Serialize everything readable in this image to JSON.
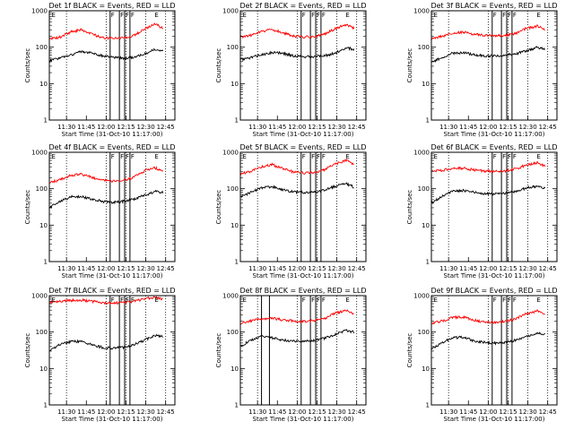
{
  "page": {
    "panel_xlabel": "Start Time (31-Oct-10 11:17:00)",
    "panel_ylabel": "Counts/sec"
  },
  "chart_data": [
    {
      "type": "line",
      "title": "Det 1f BLACK = Events, RED = LLD",
      "xlabel": "Start Time (31-Oct-10 11:17:00)",
      "ylabel": "Counts/sec",
      "yscale": "log",
      "ylim": [
        1,
        1000
      ],
      "x_ticks": [
        "11:30",
        "11:45",
        "12:00",
        "12:15",
        "12:30",
        "12:45"
      ],
      "series": [
        {
          "color": "#000000",
          "x": [
            "11:17",
            "11:25",
            "11:33",
            "11:41",
            "11:49",
            "11:57",
            "12:05",
            "12:13",
            "12:21",
            "12:29",
            "12:37",
            "12:43"
          ],
          "y": [
            42,
            50,
            60,
            75,
            70,
            58,
            52,
            50,
            54,
            65,
            88,
            82
          ]
        },
        {
          "color": "#ff0000",
          "x": [
            "11:17",
            "11:25",
            "11:33",
            "11:41",
            "11:49",
            "11:57",
            "12:05",
            "12:13",
            "12:21",
            "12:29",
            "12:37",
            "12:43"
          ],
          "y": [
            165,
            190,
            260,
            300,
            230,
            185,
            175,
            180,
            210,
            320,
            430,
            330
          ]
        }
      ],
      "markers": {
        "dotted": [
          "11:30",
          "12:00",
          "12:15",
          "12:30",
          "12:45"
        ],
        "solid": [
          "12:03",
          "12:10",
          "12:14",
          "12:18"
        ]
      },
      "marks": [
        "F",
        "F",
        "F",
        "F",
        "E",
        "E"
      ]
    },
    {
      "type": "line",
      "title": "Det 2f BLACK = Events, RED = LLD",
      "xlabel": "Start Time (31-Oct-10 11:17:00)",
      "ylabel": "Counts/sec",
      "yscale": "log",
      "ylim": [
        1,
        1000
      ],
      "x_ticks": [
        "11:30",
        "11:45",
        "12:00",
        "12:15",
        "12:30",
        "12:45"
      ],
      "series": [
        {
          "color": "#000000",
          "x": [
            "11:17",
            "11:25",
            "11:33",
            "11:41",
            "11:49",
            "11:57",
            "12:05",
            "12:13",
            "12:21",
            "12:29",
            "12:37",
            "12:43"
          ],
          "y": [
            45,
            52,
            62,
            72,
            68,
            58,
            55,
            55,
            58,
            70,
            95,
            88
          ]
        },
        {
          "color": "#ff0000",
          "x": [
            "11:17",
            "11:25",
            "11:33",
            "11:41",
            "11:49",
            "11:57",
            "12:05",
            "12:13",
            "12:21",
            "12:29",
            "12:37",
            "12:43"
          ],
          "y": [
            190,
            210,
            270,
            310,
            250,
            200,
            190,
            195,
            230,
            330,
            420,
            330
          ]
        }
      ],
      "markers": {
        "dotted": [
          "11:30",
          "12:00",
          "12:15",
          "12:30",
          "12:45"
        ],
        "solid": [
          "12:03",
          "12:10",
          "12:14",
          "12:18"
        ]
      },
      "marks": [
        "F",
        "F",
        "F",
        "F",
        "E",
        "E"
      ]
    },
    {
      "type": "line",
      "title": "Det 3f BLACK = Events, RED = LLD",
      "xlabel": "Start Time (31-Oct-10 11:17:00)",
      "ylabel": "Counts/sec",
      "yscale": "log",
      "ylim": [
        1,
        1000
      ],
      "x_ticks": [
        "11:30",
        "11:45",
        "12:00",
        "12:15",
        "12:30",
        "12:45"
      ],
      "series": [
        {
          "color": "#000000",
          "x": [
            "11:17",
            "11:25",
            "11:33",
            "11:41",
            "11:49",
            "11:57",
            "12:05",
            "12:13",
            "12:21",
            "12:29",
            "12:37",
            "12:43"
          ],
          "y": [
            38,
            52,
            68,
            72,
            62,
            58,
            58,
            60,
            66,
            80,
            100,
            90
          ]
        },
        {
          "color": "#ff0000",
          "x": [
            "11:17",
            "11:25",
            "11:33",
            "11:41",
            "11:49",
            "11:57",
            "12:05",
            "12:13",
            "12:21",
            "12:29",
            "12:37",
            "12:43"
          ],
          "y": [
            180,
            200,
            245,
            260,
            230,
            210,
            205,
            210,
            240,
            330,
            380,
            300
          ]
        }
      ],
      "markers": {
        "dotted": [
          "11:30",
          "12:00",
          "12:15",
          "12:30",
          "12:45"
        ],
        "solid": [
          "12:03",
          "12:10",
          "12:14",
          "12:18"
        ]
      },
      "marks": [
        "F",
        "F",
        "F",
        "F",
        "E",
        "E"
      ]
    },
    {
      "type": "line",
      "title": "Det 4f BLACK = Events, RED = LLD",
      "xlabel": "Start Time (31-Oct-10 11:17:00)",
      "ylabel": "Counts/sec",
      "yscale": "log",
      "ylim": [
        1,
        1000
      ],
      "x_ticks": [
        "11:30",
        "11:45",
        "12:00",
        "12:15",
        "12:30",
        "12:45"
      ],
      "series": [
        {
          "color": "#000000",
          "x": [
            "11:17",
            "11:25",
            "11:33",
            "11:41",
            "11:49",
            "11:57",
            "12:05",
            "12:13",
            "12:21",
            "12:29",
            "12:37",
            "12:43"
          ],
          "y": [
            30,
            45,
            60,
            62,
            52,
            45,
            42,
            45,
            52,
            66,
            85,
            80
          ]
        },
        {
          "color": "#ff0000",
          "x": [
            "11:17",
            "11:25",
            "11:33",
            "11:41",
            "11:49",
            "11:57",
            "12:05",
            "12:13",
            "12:21",
            "12:29",
            "12:37",
            "12:43"
          ],
          "y": [
            150,
            175,
            230,
            250,
            205,
            170,
            160,
            170,
            205,
            310,
            380,
            290
          ]
        }
      ],
      "markers": {
        "dotted": [
          "11:30",
          "12:00",
          "12:15",
          "12:30",
          "12:45"
        ],
        "solid": [
          "12:03",
          "12:10",
          "12:14",
          "12:18"
        ]
      },
      "marks": [
        "F",
        "F",
        "F",
        "F",
        "E",
        "E"
      ]
    },
    {
      "type": "line",
      "title": "Det 5f BLACK = Events, RED = LLD",
      "xlabel": "Start Time (31-Oct-10 11:17:00)",
      "ylabel": "Counts/sec",
      "yscale": "log",
      "ylim": [
        1,
        1000
      ],
      "x_ticks": [
        "11:30",
        "11:45",
        "12:00",
        "12:15",
        "12:30",
        "12:45"
      ],
      "series": [
        {
          "color": "#000000",
          "x": [
            "11:17",
            "11:25",
            "11:33",
            "11:41",
            "11:49",
            "11:57",
            "12:05",
            "12:13",
            "12:21",
            "12:29",
            "12:37",
            "12:43"
          ],
          "y": [
            60,
            80,
            105,
            115,
            95,
            82,
            80,
            82,
            92,
            118,
            140,
            110
          ]
        },
        {
          "color": "#ff0000",
          "x": [
            "11:17",
            "11:25",
            "11:33",
            "11:41",
            "11:49",
            "11:57",
            "12:05",
            "12:13",
            "12:21",
            "12:29",
            "12:37",
            "12:43"
          ],
          "y": [
            260,
            300,
            400,
            460,
            360,
            290,
            270,
            280,
            340,
            480,
            600,
            450
          ]
        }
      ],
      "markers": {
        "dotted": [
          "11:30",
          "12:00",
          "12:15",
          "12:30",
          "12:45"
        ],
        "solid": [
          "12:03",
          "12:10",
          "12:14",
          "12:18"
        ]
      },
      "marks": [
        "F",
        "F",
        "F",
        "F",
        "E",
        "E"
      ]
    },
    {
      "type": "line",
      "title": "Det 6f BLACK = Events, RED = LLD",
      "xlabel": "Start Time (31-Oct-10 11:17:00)",
      "ylabel": "Counts/sec",
      "yscale": "log",
      "ylim": [
        1,
        1000
      ],
      "x_ticks": [
        "11:30",
        "11:45",
        "12:00",
        "12:15",
        "12:30",
        "12:45"
      ],
      "series": [
        {
          "color": "#000000",
          "x": [
            "11:17",
            "11:25",
            "11:33",
            "11:41",
            "11:49",
            "11:57",
            "12:05",
            "12:13",
            "12:21",
            "12:29",
            "12:37",
            "12:43"
          ],
          "y": [
            40,
            62,
            85,
            90,
            80,
            72,
            72,
            74,
            85,
            105,
            118,
            105
          ]
        },
        {
          "color": "#ff0000",
          "x": [
            "11:17",
            "11:25",
            "11:33",
            "11:41",
            "11:49",
            "11:57",
            "12:05",
            "12:13",
            "12:21",
            "12:29",
            "12:37",
            "12:43"
          ],
          "y": [
            300,
            320,
            360,
            370,
            330,
            305,
            300,
            310,
            350,
            450,
            520,
            420
          ]
        }
      ],
      "markers": {
        "dotted": [
          "11:30",
          "12:00",
          "12:15",
          "12:30",
          "12:45"
        ],
        "solid": [
          "12:03",
          "12:10",
          "12:14",
          "12:18"
        ]
      },
      "marks": [
        "F",
        "F",
        "F",
        "F",
        "E",
        "E"
      ]
    },
    {
      "type": "line",
      "title": "Det 7f BLACK = Events, RED = LLD",
      "xlabel": "Start Time (31-Oct-10 11:17:00)",
      "ylabel": "Counts/sec",
      "yscale": "log",
      "ylim": [
        1,
        1000
      ],
      "x_ticks": [
        "11:30",
        "11:45",
        "12:00",
        "12:15",
        "12:30",
        "12:45"
      ],
      "series": [
        {
          "color": "#000000",
          "x": [
            "11:17",
            "11:25",
            "11:33",
            "11:41",
            "11:49",
            "11:57",
            "12:05",
            "12:13",
            "12:21",
            "12:29",
            "12:37",
            "12:43"
          ],
          "y": [
            32,
            45,
            55,
            55,
            45,
            38,
            36,
            38,
            45,
            60,
            80,
            78
          ]
        },
        {
          "color": "#ff0000",
          "x": [
            "11:17",
            "11:25",
            "11:33",
            "11:41",
            "11:49",
            "11:57",
            "12:05",
            "12:13",
            "12:21",
            "12:29",
            "12:37",
            "12:43"
          ],
          "y": [
            650,
            690,
            740,
            760,
            700,
            640,
            620,
            640,
            700,
            820,
            900,
            780
          ]
        }
      ],
      "markers": {
        "dotted": [
          "11:30",
          "12:00",
          "12:15",
          "12:30",
          "12:45"
        ],
        "solid": [
          "12:03",
          "12:10",
          "12:14",
          "12:18"
        ]
      },
      "marks": [
        "F",
        "F",
        "F",
        "F",
        "E",
        "E"
      ]
    },
    {
      "type": "line",
      "title": "Det 8f BLACK = Events, RED = LLD",
      "xlabel": "Start Time (31-Oct-10 11:17:00)",
      "ylabel": "Counts/sec",
      "yscale": "log",
      "ylim": [
        1,
        1000
      ],
      "x_ticks": [
        "11:30",
        "11:45",
        "12:00",
        "12:15",
        "12:30",
        "12:45"
      ],
      "series": [
        {
          "color": "#000000",
          "x": [
            "11:17",
            "11:25",
            "11:33",
            "11:41",
            "11:49",
            "11:57",
            "12:05",
            "12:13",
            "12:21",
            "12:29",
            "12:37",
            "12:43"
          ],
          "y": [
            40,
            60,
            80,
            70,
            60,
            58,
            55,
            58,
            68,
            88,
            110,
            100
          ]
        },
        {
          "color": "#ff0000",
          "x": [
            "11:17",
            "11:25",
            "11:33",
            "11:41",
            "11:49",
            "11:57",
            "12:05",
            "12:13",
            "12:21",
            "12:29",
            "12:37",
            "12:43"
          ],
          "y": [
            180,
            200,
            230,
            240,
            215,
            200,
            195,
            205,
            240,
            330,
            400,
            300
          ]
        }
      ],
      "markers": {
        "dotted": [
          "11:30",
          "12:00",
          "12:15",
          "12:30",
          "12:45"
        ],
        "solid": [
          "11:33",
          "11:39",
          "12:03",
          "12:10",
          "12:14",
          "12:18"
        ]
      },
      "marks": [
        "F",
        "F",
        "F",
        "F",
        "E",
        "E"
      ]
    },
    {
      "type": "line",
      "title": "Det 9f BLACK = Events, RED = LLD",
      "xlabel": "Start Time (31-Oct-10 11:17:00)",
      "ylabel": "Counts/sec",
      "yscale": "log",
      "ylim": [
        1,
        1000
      ],
      "x_ticks": [
        "11:30",
        "11:45",
        "12:00",
        "12:15",
        "12:30",
        "12:45"
      ],
      "series": [
        {
          "color": "#000000",
          "x": [
            "11:17",
            "11:25",
            "11:33",
            "11:41",
            "11:49",
            "11:57",
            "12:05",
            "12:13",
            "12:21",
            "12:29",
            "12:37",
            "12:43"
          ],
          "y": [
            35,
            50,
            70,
            72,
            58,
            52,
            50,
            52,
            60,
            75,
            95,
            88
          ]
        },
        {
          "color": "#ff0000",
          "x": [
            "11:17",
            "11:25",
            "11:33",
            "11:41",
            "11:49",
            "11:57",
            "12:05",
            "12:13",
            "12:21",
            "12:29",
            "12:37",
            "12:43"
          ],
          "y": [
            170,
            200,
            250,
            260,
            215,
            190,
            185,
            195,
            230,
            320,
            380,
            300
          ]
        }
      ],
      "markers": {
        "dotted": [
          "11:30",
          "12:00",
          "12:15",
          "12:30",
          "12:45"
        ],
        "solid": [
          "12:03",
          "12:10",
          "12:14",
          "12:18"
        ]
      },
      "marks": [
        "F",
        "F",
        "F",
        "F",
        "E",
        "E"
      ]
    }
  ]
}
